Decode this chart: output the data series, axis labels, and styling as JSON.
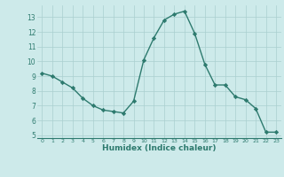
{
  "x": [
    0,
    1,
    2,
    3,
    4,
    5,
    6,
    7,
    8,
    9,
    10,
    11,
    12,
    13,
    14,
    15,
    16,
    17,
    18,
    19,
    20,
    21,
    22,
    23
  ],
  "y": [
    9.2,
    9.0,
    8.6,
    8.2,
    7.5,
    7.0,
    6.7,
    6.6,
    6.5,
    7.3,
    10.1,
    11.6,
    12.8,
    13.2,
    13.4,
    11.9,
    9.8,
    8.4,
    8.4,
    7.6,
    7.4,
    6.8,
    5.2,
    5.2
  ],
  "xlim": [
    -0.5,
    23.5
  ],
  "ylim": [
    4.8,
    13.8
  ],
  "yticks": [
    5,
    6,
    7,
    8,
    9,
    10,
    11,
    12,
    13
  ],
  "xtick_labels": [
    "0",
    "1",
    "2",
    "3",
    "4",
    "5",
    "6",
    "7",
    "8",
    "9",
    "10",
    "11",
    "12",
    "13",
    "14",
    "15",
    "16",
    "17",
    "18",
    "19",
    "20",
    "21",
    "22",
    "23"
  ],
  "xlabel": "Humidex (Indice chaleur)",
  "line_color": "#2d7a6e",
  "marker": "D",
  "bg_color": "#cdeaea",
  "grid_color": "#aacfcf",
  "tick_color": "#2d7a6e",
  "label_color": "#2d7a6e"
}
